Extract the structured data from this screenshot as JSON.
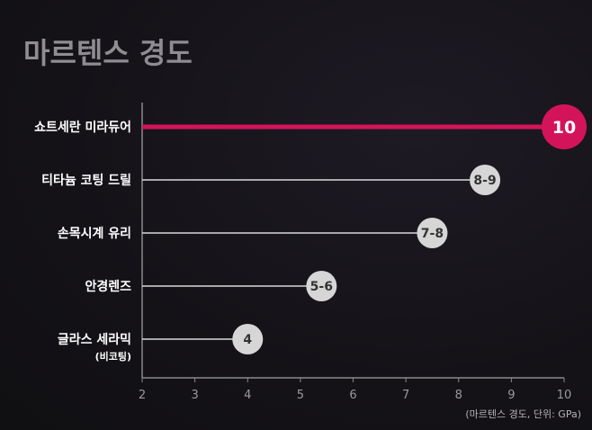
{
  "title": "마르텐스 경도",
  "note": "(마르텐스 경도, 단위: GPa)",
  "colors": {
    "highlight": "#d4145a",
    "line": "#d9d9d9",
    "bubble": "#d6d6d6",
    "bubble_text": "#333333",
    "axis": "#8a8a8a",
    "tick_text": "#9a9a9a",
    "label_text": "#ffffff"
  },
  "chart_data": {
    "type": "bar",
    "xlim": [
      2,
      10
    ],
    "x_ticks": [
      2,
      3,
      4,
      5,
      6,
      7,
      8,
      9,
      10
    ],
    "categories": [
      {
        "label": "쇼트세란 미라듀어",
        "sublabel": "",
        "value": 10,
        "display": "10",
        "highlight": true
      },
      {
        "label": "티타늄 코팅 드릴",
        "sublabel": "",
        "value": 8.5,
        "display": "8-9",
        "highlight": false
      },
      {
        "label": "손목시계 유리",
        "sublabel": "",
        "value": 7.5,
        "display": "7-8",
        "highlight": false
      },
      {
        "label": "안경렌즈",
        "sublabel": "",
        "value": 5.4,
        "display": "5-6",
        "highlight": false
      },
      {
        "label": "글라스 세라믹",
        "sublabel": "(비코팅)",
        "value": 4,
        "display": "4",
        "highlight": false
      }
    ]
  }
}
